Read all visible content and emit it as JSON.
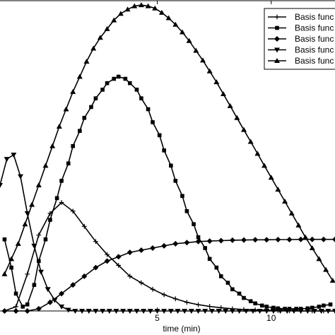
{
  "chart_data": {
    "type": "line",
    "xlabel": "time (min)",
    "ylabel": "",
    "title": "",
    "xlim": [
      -1.9,
      12.8
    ],
    "ylim": [
      0,
      1.43
    ],
    "x_ticks": [
      5,
      10
    ],
    "x_tick_labels": [
      "5",
      "10"
    ],
    "grid": false,
    "legend_position": "top-right",
    "series": [
      {
        "name": "Basis func",
        "marker": "plus",
        "x": [
          -1.7,
          -1.2,
          -0.7,
          -0.2,
          0.3,
          0.8,
          1.3,
          1.8,
          2.3,
          2.8,
          3.3,
          3.8,
          4.3,
          4.8,
          5.3,
          5.8,
          6.3,
          6.8,
          7.3,
          7.8,
          8.3,
          8.8,
          9.3,
          9.8,
          10.3,
          10.8,
          11.3,
          11.8,
          12.3,
          12.8
        ],
        "values": [
          0.0,
          0.02,
          0.17,
          0.35,
          0.45,
          0.5,
          0.46,
          0.39,
          0.32,
          0.26,
          0.21,
          0.16,
          0.13,
          0.1,
          0.075,
          0.056,
          0.04,
          0.029,
          0.021,
          0.015,
          0.01,
          0.007,
          0.005,
          0.003,
          0.002,
          0.001,
          0.0,
          0.0,
          0.0,
          0.0
        ]
      },
      {
        "name": "Basis func",
        "marker": "square",
        "x": [
          -1.7,
          -1.4,
          -1.2,
          -0.9,
          -0.7,
          -0.4,
          -0.2,
          0.1,
          0.3,
          0.6,
          0.8,
          1.1,
          1.3,
          1.6,
          1.8,
          2.1,
          2.3,
          2.6,
          2.8,
          3.1,
          3.3,
          3.6,
          3.8,
          4.1,
          4.3,
          4.6,
          4.8,
          5.1,
          5.3,
          5.6,
          5.8,
          6.1,
          6.3,
          6.6,
          6.8,
          7.1,
          7.3,
          7.6,
          7.8,
          8.1,
          8.3,
          8.6,
          8.8,
          9.1,
          9.3,
          9.6,
          9.8,
          10.1,
          10.3,
          10.6,
          10.8,
          11.1,
          11.3,
          11.6,
          11.8,
          12.1,
          12.3,
          12.6
        ],
        "values": [
          0.33,
          0.2,
          0.08,
          0.02,
          0.03,
          0.12,
          0.23,
          0.33,
          0.42,
          0.52,
          0.6,
          0.68,
          0.76,
          0.83,
          0.89,
          0.94,
          0.98,
          1.02,
          1.05,
          1.07,
          1.08,
          1.07,
          1.05,
          1.02,
          0.98,
          0.93,
          0.87,
          0.81,
          0.74,
          0.67,
          0.6,
          0.53,
          0.46,
          0.4,
          0.34,
          0.29,
          0.24,
          0.2,
          0.16,
          0.13,
          0.1,
          0.08,
          0.06,
          0.045,
          0.035,
          0.025,
          0.02,
          0.015,
          0.012,
          0.01,
          0.01,
          0.01,
          0.01,
          0.012,
          0.015,
          0.02,
          0.025,
          0.03
        ]
      },
      {
        "name": "Basis func",
        "marker": "diamond",
        "x": [
          -1.7,
          -1.2,
          -0.7,
          -0.2,
          0.3,
          0.8,
          1.3,
          1.8,
          2.3,
          2.8,
          3.3,
          3.8,
          4.3,
          4.8,
          5.3,
          5.8,
          6.3,
          6.8,
          7.3,
          7.8,
          8.3,
          8.8,
          9.3,
          9.8,
          10.3,
          10.8,
          11.3,
          11.8,
          12.3,
          12.8
        ],
        "values": [
          0.0,
          0.0,
          0.0,
          0.01,
          0.04,
          0.08,
          0.12,
          0.16,
          0.2,
          0.23,
          0.25,
          0.27,
          0.28,
          0.29,
          0.3,
          0.31,
          0.315,
          0.32,
          0.322,
          0.324,
          0.326,
          0.327,
          0.328,
          0.328,
          0.329,
          0.329,
          0.33,
          0.33,
          0.33,
          0.33
        ]
      },
      {
        "name": "Basis func",
        "marker": "triangle-down",
        "x": [
          -1.9,
          -1.6,
          -1.3,
          -1.0,
          -0.7,
          -0.4,
          -0.1,
          0.2,
          0.5,
          0.8,
          1.1,
          1.4,
          1.7,
          2.0,
          2.3,
          2.6,
          2.9,
          3.2,
          3.5,
          3.8,
          4.1,
          4.4,
          4.7,
          5.0,
          5.3,
          5.6,
          5.9,
          6.2,
          6.5,
          6.8,
          7.1,
          7.4,
          7.7,
          8.0,
          8.3,
          8.6,
          8.9,
          9.2,
          9.5,
          9.8,
          10.1,
          10.4,
          10.7,
          11.0,
          11.3,
          11.6,
          11.9,
          12.2,
          12.5,
          12.8
        ],
        "values": [
          0.58,
          0.7,
          0.72,
          0.62,
          0.45,
          0.3,
          0.18,
          0.1,
          0.05,
          0.02,
          0.005,
          0.0,
          0.0,
          0.0,
          0.0,
          0.0,
          0.0,
          0.0,
          0.0,
          0.0,
          0.0,
          0.0,
          0.0,
          0.0,
          0.0,
          0.0,
          0.0,
          0.0,
          0.0,
          0.0,
          0.0,
          0.0,
          0.0,
          0.0,
          0.0,
          0.0,
          0.0,
          0.0,
          0.0,
          0.0,
          0.0,
          0.0,
          0.0,
          0.0,
          0.0,
          0.0,
          0.0,
          0.0,
          0.0,
          0.0
        ]
      },
      {
        "name": "Basis func",
        "marker": "triangle-up",
        "x": [
          -1.7,
          -1.4,
          -1.1,
          -0.8,
          -0.5,
          -0.2,
          0.1,
          0.4,
          0.7,
          1.0,
          1.3,
          1.6,
          1.9,
          2.2,
          2.5,
          2.8,
          3.1,
          3.4,
          3.7,
          4.0,
          4.3,
          4.6,
          4.9,
          5.2,
          5.5,
          5.8,
          6.1,
          6.4,
          6.7,
          7.0,
          7.3,
          7.6,
          7.9,
          8.2,
          8.5,
          8.8,
          9.1,
          9.4,
          9.7,
          10.0,
          10.3,
          10.6,
          10.9,
          11.2,
          11.5,
          11.8,
          12.1,
          12.4,
          12.7
        ],
        "values": [
          0.17,
          0.24,
          0.31,
          0.4,
          0.49,
          0.58,
          0.67,
          0.76,
          0.85,
          0.93,
          1.01,
          1.08,
          1.15,
          1.21,
          1.26,
          1.3,
          1.34,
          1.37,
          1.39,
          1.405,
          1.41,
          1.405,
          1.395,
          1.375,
          1.35,
          1.32,
          1.285,
          1.245,
          1.2,
          1.155,
          1.105,
          1.055,
          1.0,
          0.945,
          0.89,
          0.835,
          0.78,
          0.725,
          0.67,
          0.615,
          0.56,
          0.505,
          0.45,
          0.395,
          0.34,
          0.29,
          0.24,
          0.19,
          0.14
        ]
      }
    ]
  }
}
